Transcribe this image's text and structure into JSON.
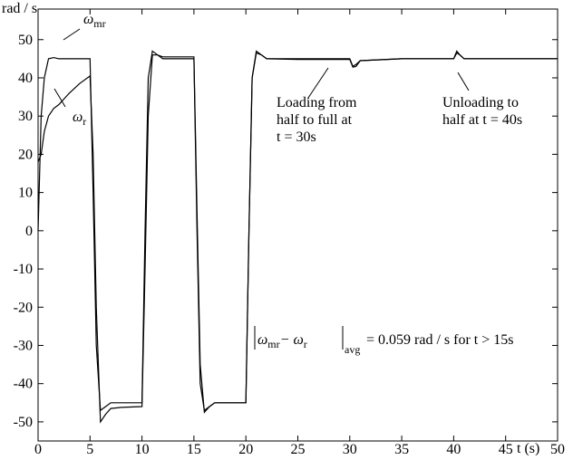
{
  "chart_data": {
    "type": "line",
    "y_label": "rad / s",
    "x_label": "t (s)",
    "x": [
      0,
      0.3,
      0.6,
      1,
      1.5,
      2,
      3,
      4,
      5,
      5.3,
      5.6,
      6,
      6.5,
      7,
      8,
      10,
      10.3,
      10.6,
      11,
      11.5,
      12,
      15,
      15.3,
      15.6,
      16,
      16.5,
      17,
      20,
      20.3,
      20.6,
      21,
      21.5,
      22,
      25,
      30,
      30.3,
      30.6,
      31,
      35,
      40,
      40.3,
      40.6,
      41,
      45,
      50
    ],
    "series": [
      {
        "name": "ω",
        "subscript": "mr",
        "color": "#000000",
        "values": [
          0,
          30,
          40,
          45,
          45.3,
          45,
          45,
          45,
          45,
          10,
          -30,
          -47,
          -46,
          -45,
          -45,
          -45,
          0,
          40,
          47,
          46,
          45,
          45,
          0,
          -40,
          -47,
          -46,
          -45,
          -45,
          0,
          40,
          47,
          46,
          45,
          45,
          45,
          43,
          43.5,
          44.5,
          45,
          45,
          47,
          46,
          45,
          45,
          45
        ]
      },
      {
        "name": "ω",
        "subscript": "r",
        "color": "#000000",
        "values": [
          18,
          20,
          26,
          30,
          32,
          33,
          36,
          38.5,
          40.5,
          20,
          -20,
          -50,
          -48,
          -46.5,
          -46.2,
          -46,
          -10,
          30,
          46,
          46,
          45.5,
          45.5,
          5,
          -35,
          -47.5,
          -46,
          -45,
          -45,
          0,
          40,
          46.5,
          46,
          45,
          44.8,
          44.8,
          42.8,
          43,
          44.5,
          45,
          45,
          46.5,
          46,
          45,
          45,
          45
        ]
      }
    ],
    "xlim": [
      0,
      50
    ],
    "ylim": [
      -55,
      58
    ],
    "xticks": [
      0,
      5,
      10,
      15,
      20,
      25,
      30,
      35,
      40,
      45,
      50
    ],
    "yticks": [
      -50,
      -40,
      -30,
      -20,
      -10,
      0,
      10,
      20,
      30,
      40,
      50
    ],
    "annotations": [
      {
        "lines": [
          "Loading from",
          "half to full at",
          "t = 30s"
        ]
      },
      {
        "lines": [
          "Unloading to",
          "half at  t = 40s"
        ]
      }
    ],
    "formula": {
      "symbol_1": "ω",
      "sub_1": "mr",
      "minus": "− ω",
      "sub_2": "r",
      "sub_avg": "avg",
      "rest": "= 0.059 rad / s  for  t > 15s"
    }
  }
}
